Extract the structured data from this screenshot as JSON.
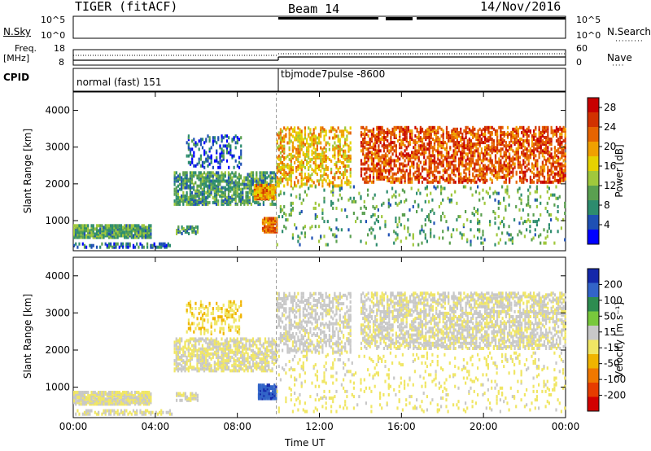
{
  "header": {
    "station": "TIGER (fitACF)",
    "beam": "Beam 14",
    "date": "14/Nov/2016"
  },
  "panels": {
    "nsky_label": "N.Sky",
    "nsearch_label": "N.Search",
    "nsky_ticks": [
      "10^5",
      "10^0"
    ],
    "freq_label": "Freq.",
    "freq_unit": "[MHz]",
    "freq_ticks": [
      "18",
      "8"
    ],
    "nave_label": "Nave",
    "nave_ticks": [
      "60",
      "0"
    ],
    "cpid_label": "CPID",
    "cpid_modes": [
      "normal (fast) 151",
      "tbjmode7pulse -8600"
    ]
  },
  "colors": {
    "power": [
      "#0000ff",
      "#1e50b4",
      "#2d8c6e",
      "#5aa050",
      "#a0c83c",
      "#e6d200",
      "#f0a000",
      "#e66400",
      "#d23200",
      "#c80000"
    ],
    "velocity": [
      "#1428aa",
      "#3264c8",
      "#2d8c50",
      "#78c83c",
      "#c8c8c8",
      "#f0e664",
      "#f0b400",
      "#f07800",
      "#e63c00",
      "#d20000"
    ]
  },
  "chart_data": [
    {
      "type": "heatmap",
      "name": "power",
      "ylabel": "Slant Range [km]",
      "yticks": [
        1000,
        2000,
        3000,
        4000
      ],
      "ylim": [
        180,
        4500
      ],
      "xticks": [
        "00:00",
        "04:00",
        "08:00",
        "12:00",
        "16:00",
        "20:00",
        "00:00"
      ],
      "xlim_hours": [
        0,
        24
      ],
      "colorbar": {
        "label": "Power [dB]",
        "ticks": [
          "4",
          "8",
          "12",
          "16",
          "20",
          "24",
          "28"
        ],
        "range": [
          0,
          30
        ]
      },
      "regions": [
        {
          "t": [
            0.0,
            3.8
          ],
          "r": [
            500,
            850
          ],
          "value": 10,
          "density": 0.85
        },
        {
          "t": [
            0.0,
            4.8
          ],
          "r": [
            230,
            330
          ],
          "value": 6,
          "density": 0.5
        },
        {
          "t": [
            5.0,
            6.1
          ],
          "r": [
            600,
            800
          ],
          "value": 9,
          "density": 0.6
        },
        {
          "t": [
            4.9,
            9.9
          ],
          "r": [
            1400,
            2300
          ],
          "value": 9,
          "density": 0.55
        },
        {
          "t": [
            5.5,
            8.2
          ],
          "r": [
            2400,
            3300
          ],
          "value": 5,
          "density": 0.25
        },
        {
          "t": [
            8.8,
            9.9
          ],
          "r": [
            1550,
            1950
          ],
          "value": 20,
          "density": 0.8
        },
        {
          "t": [
            9.2,
            9.9
          ],
          "r": [
            650,
            1050
          ],
          "value": 22,
          "density": 0.9
        },
        {
          "t": [
            9.9,
            13.5
          ],
          "r": [
            1900,
            3500
          ],
          "value": 18,
          "density": 0.35
        },
        {
          "t": [
            14.0,
            24.0
          ],
          "r": [
            2000,
            3500
          ],
          "value": 24,
          "density": 0.45
        },
        {
          "t": [
            9.9,
            24.0
          ],
          "r": [
            300,
            1900
          ],
          "value": 10,
          "density": 0.08
        }
      ]
    },
    {
      "type": "heatmap",
      "name": "velocity",
      "ylabel": "Slant Range [km]",
      "xlabel": "Time UT",
      "yticks": [
        1000,
        2000,
        3000,
        4000
      ],
      "ylim": [
        180,
        4500
      ],
      "xticks": [
        "00:00",
        "04:00",
        "08:00",
        "12:00",
        "16:00",
        "20:00",
        "00:00"
      ],
      "xlim_hours": [
        0,
        24
      ],
      "colorbar": {
        "label": "Velocity [m s⁻¹]",
        "ticks": [
          "200",
          "100",
          "50",
          "15",
          "-15",
          "-50",
          "-100",
          "-200"
        ],
        "range": [
          -250,
          250
        ]
      },
      "regions": [
        {
          "t": [
            0.0,
            3.8
          ],
          "r": [
            500,
            850
          ],
          "value": 0,
          "density": 0.85
        },
        {
          "t": [
            0.0,
            4.8
          ],
          "r": [
            230,
            330
          ],
          "value": 0,
          "density": 0.5
        },
        {
          "t": [
            5.0,
            6.1
          ],
          "r": [
            600,
            800
          ],
          "value": 0,
          "density": 0.6
        },
        {
          "t": [
            4.9,
            9.9
          ],
          "r": [
            1400,
            2300
          ],
          "value": 0,
          "density": 0.55
        },
        {
          "t": [
            5.5,
            8.2
          ],
          "r": [
            2400,
            3300
          ],
          "value": -40,
          "density": 0.25
        },
        {
          "t": [
            9.0,
            9.9
          ],
          "r": [
            650,
            1050
          ],
          "value": 180,
          "density": 0.9
        },
        {
          "t": [
            9.9,
            13.5
          ],
          "r": [
            1900,
            3500
          ],
          "value": 20,
          "density": 0.35
        },
        {
          "t": [
            14.0,
            24.0
          ],
          "r": [
            2000,
            3500
          ],
          "value": 10,
          "density": 0.45
        },
        {
          "t": [
            9.9,
            24.0
          ],
          "r": [
            300,
            1900
          ],
          "value": -20,
          "density": 0.08
        }
      ]
    }
  ]
}
